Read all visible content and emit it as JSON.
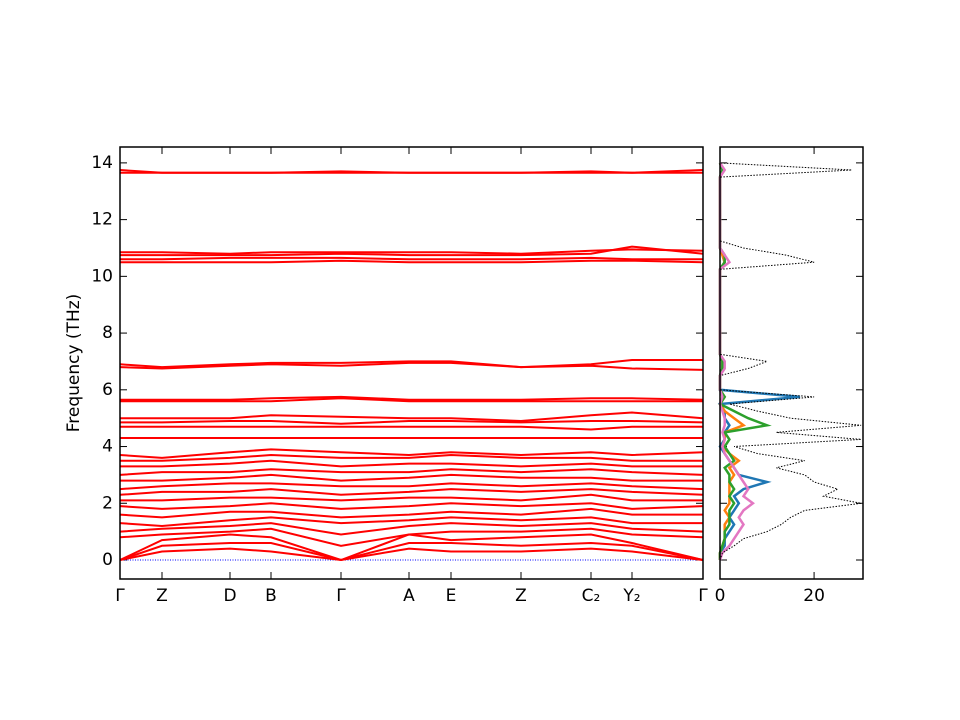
{
  "chart_data": [
    {
      "type": "line",
      "ylabel": "Frequency (THz)",
      "color": "#ff0000",
      "x": [
        0,
        0.42,
        1.1,
        1.51,
        2.21,
        2.89,
        3.31,
        4.01,
        4.71,
        5.12,
        5.83
      ],
      "xlim": [
        0,
        5.83
      ],
      "xticks": [
        {
          "value": 0,
          "label": "Γ"
        },
        {
          "value": 0.42,
          "label": "Z"
        },
        {
          "value": 1.1,
          "label": "D"
        },
        {
          "value": 1.51,
          "label": "B"
        },
        {
          "value": 2.21,
          "label": "Γ"
        },
        {
          "value": 2.89,
          "label": "A"
        },
        {
          "value": 3.31,
          "label": "E"
        },
        {
          "value": 4.01,
          "label": "Z"
        },
        {
          "value": 4.71,
          "label": "C₂"
        },
        {
          "value": 5.12,
          "label": "Y₂"
        },
        {
          "value": 5.83,
          "label": "Γ"
        }
      ],
      "ylim": [
        -0.67,
        14.56
      ],
      "yticks": [
        0,
        2,
        4,
        6,
        8,
        10,
        12,
        14
      ],
      "hline": 0,
      "hline_color": "#0000ff",
      "series": [
        {
          "values": [
            0,
            0.3,
            0.4,
            0.3,
            0,
            0.4,
            0.3,
            0.3,
            0.4,
            0.3,
            0
          ]
        },
        {
          "values": [
            0,
            0.5,
            0.6,
            0.6,
            0,
            0.6,
            0.6,
            0.5,
            0.6,
            0.5,
            0
          ]
        },
        {
          "values": [
            0,
            0.7,
            0.9,
            0.8,
            0,
            0.9,
            0.7,
            0.8,
            0.9,
            0.6,
            0
          ]
        },
        {
          "values": [
            0.8,
            0.9,
            1.0,
            1.1,
            0.5,
            0.9,
            1.0,
            1.0,
            1.1,
            0.9,
            0.8
          ]
        },
        {
          "values": [
            1.0,
            1.1,
            1.2,
            1.3,
            0.9,
            1.2,
            1.3,
            1.2,
            1.3,
            1.1,
            1.0
          ]
        },
        {
          "values": [
            1.3,
            1.2,
            1.4,
            1.5,
            1.3,
            1.4,
            1.5,
            1.4,
            1.5,
            1.3,
            1.3
          ]
        },
        {
          "values": [
            1.6,
            1.5,
            1.7,
            1.7,
            1.5,
            1.6,
            1.7,
            1.6,
            1.8,
            1.6,
            1.6
          ]
        },
        {
          "values": [
            1.9,
            1.8,
            1.9,
            2.0,
            1.8,
            1.9,
            2.0,
            1.9,
            2.0,
            1.8,
            1.9
          ]
        },
        {
          "values": [
            2.1,
            2.1,
            2.2,
            2.2,
            2.1,
            2.2,
            2.2,
            2.1,
            2.3,
            2.1,
            2.1
          ]
        },
        {
          "values": [
            2.3,
            2.4,
            2.4,
            2.5,
            2.3,
            2.4,
            2.5,
            2.4,
            2.5,
            2.4,
            2.3
          ]
        },
        {
          "values": [
            2.5,
            2.6,
            2.7,
            2.7,
            2.6,
            2.6,
            2.7,
            2.6,
            2.7,
            2.6,
            2.5
          ]
        },
        {
          "values": [
            2.8,
            2.8,
            2.9,
            3.0,
            2.8,
            2.9,
            3.0,
            2.9,
            2.9,
            2.8,
            2.8
          ]
        },
        {
          "values": [
            3.0,
            3.1,
            3.1,
            3.2,
            3.1,
            3.1,
            3.2,
            3.1,
            3.2,
            3.1,
            3.0
          ]
        },
        {
          "values": [
            3.3,
            3.3,
            3.4,
            3.5,
            3.3,
            3.4,
            3.4,
            3.3,
            3.4,
            3.3,
            3.3
          ]
        },
        {
          "values": [
            3.5,
            3.5,
            3.6,
            3.7,
            3.6,
            3.6,
            3.7,
            3.6,
            3.6,
            3.5,
            3.5
          ]
        },
        {
          "values": [
            3.7,
            3.6,
            3.8,
            3.9,
            3.8,
            3.7,
            3.8,
            3.7,
            3.8,
            3.7,
            3.8
          ]
        },
        {
          "values": [
            4.3,
            4.3,
            4.3,
            4.3,
            4.3,
            4.3,
            4.3,
            4.3,
            4.3,
            4.3,
            4.3
          ]
        },
        {
          "values": [
            4.7,
            4.7,
            4.7,
            4.7,
            4.7,
            4.7,
            4.7,
            4.7,
            4.6,
            4.7,
            4.7
          ]
        },
        {
          "values": [
            4.85,
            4.85,
            4.9,
            4.9,
            4.8,
            4.9,
            4.9,
            4.85,
            4.9,
            4.9,
            4.85
          ]
        },
        {
          "values": [
            5.0,
            5.0,
            5.0,
            5.1,
            5.05,
            5.0,
            5.0,
            4.9,
            5.1,
            5.2,
            5.0
          ]
        },
        {
          "values": [
            5.6,
            5.6,
            5.6,
            5.6,
            5.7,
            5.6,
            5.6,
            5.6,
            5.6,
            5.6,
            5.6
          ]
        },
        {
          "values": [
            5.65,
            5.65,
            5.65,
            5.7,
            5.75,
            5.65,
            5.65,
            5.65,
            5.7,
            5.7,
            5.65
          ]
        },
        {
          "values": [
            6.9,
            6.8,
            6.9,
            6.95,
            6.95,
            7.0,
            7.0,
            6.8,
            6.9,
            7.05,
            7.05
          ]
        },
        {
          "values": [
            6.8,
            6.75,
            6.85,
            6.9,
            6.85,
            6.95,
            6.95,
            6.8,
            6.85,
            6.75,
            6.7
          ]
        },
        {
          "values": [
            10.5,
            10.5,
            10.5,
            10.5,
            10.55,
            10.5,
            10.5,
            10.5,
            10.55,
            10.55,
            10.5
          ]
        },
        {
          "values": [
            10.6,
            10.6,
            10.65,
            10.65,
            10.65,
            10.6,
            10.6,
            10.6,
            10.65,
            10.6,
            10.6
          ]
        },
        {
          "values": [
            10.75,
            10.75,
            10.75,
            10.75,
            10.8,
            10.75,
            10.75,
            10.75,
            10.8,
            11.05,
            10.8
          ]
        },
        {
          "values": [
            10.85,
            10.85,
            10.8,
            10.85,
            10.85,
            10.85,
            10.85,
            10.8,
            10.9,
            10.95,
            10.9
          ]
        },
        {
          "values": [
            13.65,
            13.65,
            13.65,
            13.65,
            13.65,
            13.65,
            13.65,
            13.65,
            13.65,
            13.65,
            13.65
          ]
        },
        {
          "values": [
            13.75,
            13.65,
            13.65,
            13.65,
            13.7,
            13.65,
            13.65,
            13.65,
            13.7,
            13.65,
            13.75
          ]
        }
      ]
    },
    {
      "type": "line",
      "orientation": "horizontal",
      "frequencies": [
        0,
        0.25,
        0.5,
        0.75,
        1,
        1.25,
        1.5,
        1.75,
        2,
        2.25,
        2.5,
        2.75,
        3,
        3.25,
        3.5,
        3.75,
        4,
        4.25,
        4.5,
        4.75,
        5,
        5.25,
        5.5,
        5.75,
        6,
        6.25,
        6.5,
        6.75,
        7,
        7.25,
        7.5,
        7.75,
        8,
        8.25,
        8.5,
        8.75,
        9,
        9.25,
        9.5,
        9.75,
        10,
        10.25,
        10.5,
        10.75,
        11,
        11.25,
        11.5,
        11.75,
        12,
        12.25,
        12.5,
        12.75,
        13,
        13.25,
        13.5,
        13.75,
        14
      ],
      "xlim": [
        0,
        30.4
      ],
      "xticks": [
        0,
        20
      ],
      "ylim": [
        -0.67,
        14.56
      ],
      "yticks": [
        0,
        2,
        4,
        6,
        8,
        10,
        12,
        14
      ],
      "series": [
        {
          "color": "#1f77b4",
          "values": [
            0,
            0,
            1,
            1,
            2,
            3,
            2,
            3,
            4,
            3,
            5,
            10,
            4,
            3,
            2,
            1,
            0,
            1,
            1,
            2,
            1,
            1,
            0,
            17,
            0,
            0,
            0,
            0.5,
            0.5,
            0,
            0,
            0,
            0,
            0,
            0,
            0,
            0,
            0,
            0,
            0,
            0,
            0,
            1,
            0.5,
            0,
            0,
            0,
            0,
            0,
            0,
            0,
            0,
            0,
            0,
            0,
            0.5,
            0
          ]
        },
        {
          "color": "#ff7f0e",
          "values": [
            0,
            0,
            0.5,
            1,
            1,
            1,
            2,
            1,
            2,
            2,
            2,
            2,
            3,
            2,
            4,
            2,
            0.5,
            1,
            1,
            5,
            3,
            1,
            0,
            1,
            0,
            0,
            0,
            0.5,
            0.5,
            0,
            0,
            0,
            0,
            0,
            0,
            0,
            0,
            0,
            0,
            0,
            0,
            0,
            1,
            0.5,
            0,
            0,
            0,
            0,
            0,
            0,
            0,
            0,
            0,
            0,
            0,
            0.5,
            0
          ]
        },
        {
          "color": "#2ca02c",
          "values": [
            0,
            0,
            0.5,
            1,
            1,
            2,
            2,
            2,
            3,
            2,
            3,
            2,
            2,
            1,
            3,
            2,
            1,
            2,
            1,
            10,
            6,
            3,
            0,
            1,
            0,
            0,
            0,
            0.5,
            0.5,
            0,
            0,
            0,
            0,
            0,
            0,
            0,
            0,
            0,
            0,
            0,
            0,
            0,
            1,
            1,
            0,
            0,
            0,
            0,
            0,
            0,
            0,
            0,
            0,
            0,
            0,
            0.5,
            0
          ]
        },
        {
          "color": "#e377c2",
          "values": [
            0,
            0.5,
            2,
            3,
            4,
            5,
            4,
            5,
            7,
            5,
            6,
            5,
            4,
            3,
            2,
            1,
            0.5,
            1,
            0.5,
            1,
            1,
            0.5,
            0,
            0.5,
            0,
            0,
            0,
            1,
            1,
            0,
            0,
            0,
            0,
            0,
            0,
            0,
            0,
            0,
            0,
            0,
            0,
            0,
            2,
            1,
            0,
            0,
            0,
            0,
            0,
            0,
            0,
            0,
            0,
            0,
            0,
            1,
            0
          ]
        },
        {
          "color": "#000000",
          "linestyle": "dotted",
          "values": [
            0,
            0.5,
            3,
            5,
            10,
            13,
            15,
            18,
            30,
            22,
            25,
            20,
            18,
            12,
            18,
            8,
            3,
            30,
            12,
            30,
            15,
            8,
            2,
            20,
            0,
            0,
            0,
            6,
            10,
            0,
            0,
            0,
            0,
            0,
            0,
            0,
            0,
            0,
            0,
            0,
            0,
            0,
            20,
            14,
            5,
            0,
            0,
            0,
            0,
            0,
            0,
            0,
            0,
            0,
            0,
            28,
            0
          ]
        }
      ]
    }
  ]
}
